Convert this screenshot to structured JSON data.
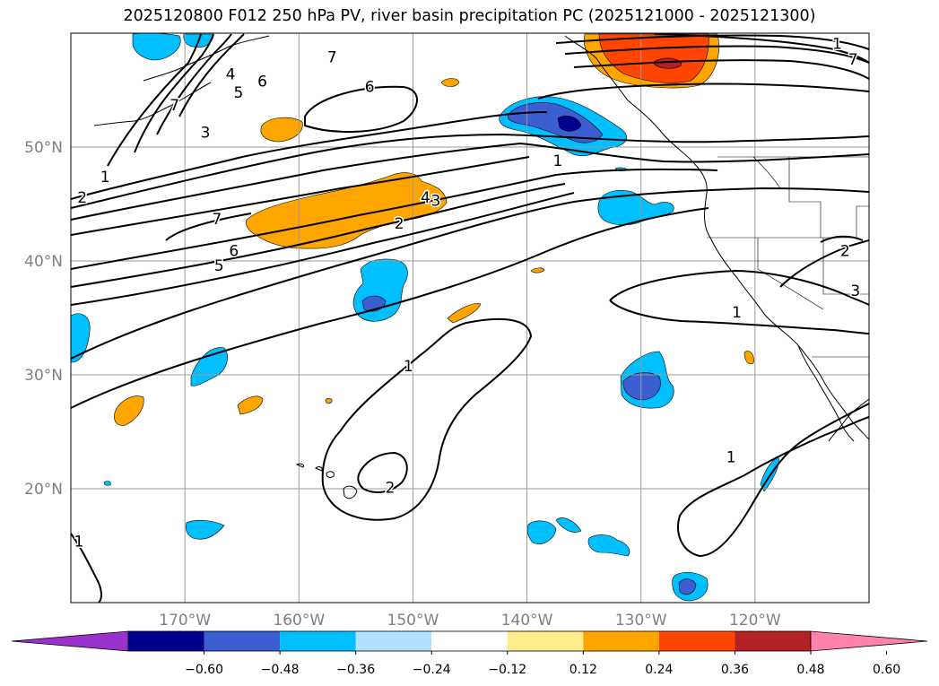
{
  "title": "2025120800 F012 250 hPa PV, river basin precipitation PC (2025121000 - 2025121300)",
  "map": {
    "lon_range": [
      -180,
      -110
    ],
    "lat_range": [
      10,
      60
    ],
    "lon_ticks": [
      {
        "lon": -170,
        "label": "170°W"
      },
      {
        "lon": -160,
        "label": "160°W"
      },
      {
        "lon": -150,
        "label": "150°W"
      },
      {
        "lon": -140,
        "label": "140°W"
      },
      {
        "lon": -130,
        "label": "130°W"
      },
      {
        "lon": -120,
        "label": "120°W"
      }
    ],
    "lat_ticks": [
      {
        "lat": 20,
        "label": "20°N"
      },
      {
        "lat": 30,
        "label": "30°N"
      },
      {
        "lat": 40,
        "label": "40°N"
      },
      {
        "lat": 50,
        "label": "50°N"
      }
    ],
    "contour_labels": [
      {
        "text": "1",
        "lon": -177,
        "lat": 47.4
      },
      {
        "text": "2",
        "lon": -179,
        "lat": 45.6
      },
      {
        "text": "3",
        "lon": -168.2,
        "lat": 51.3
      },
      {
        "text": "4",
        "lon": -166,
        "lat": 56.4
      },
      {
        "text": "5",
        "lon": -165.3,
        "lat": 54.8
      },
      {
        "text": "6",
        "lon": -163.2,
        "lat": 55.8
      },
      {
        "text": "6",
        "lon": -153.8,
        "lat": 55.3
      },
      {
        "text": "7",
        "lon": -157.1,
        "lat": 57.9
      },
      {
        "text": "7",
        "lon": -170.9,
        "lat": 53.7
      },
      {
        "text": "7",
        "lon": -167.2,
        "lat": 43.7
      },
      {
        "text": "6",
        "lon": -165.7,
        "lat": 40.9
      },
      {
        "text": "5",
        "lon": -167.0,
        "lat": 39.6
      },
      {
        "text": "4",
        "lon": -148.9,
        "lat": 45.6
      },
      {
        "text": "3",
        "lon": -148.0,
        "lat": 45.3
      },
      {
        "text": "2",
        "lon": -151.2,
        "lat": 43.3
      },
      {
        "text": "1",
        "lon": -137.3,
        "lat": 48.8
      },
      {
        "text": "1",
        "lon": -150.4,
        "lat": 30.8
      },
      {
        "text": "2",
        "lon": -152.0,
        "lat": 20.1
      },
      {
        "text": "1",
        "lon": -179.3,
        "lat": 15.4
      },
      {
        "text": "1",
        "lon": -112.8,
        "lat": 59.1
      },
      {
        "text": "7",
        "lon": -111.4,
        "lat": 57.7
      },
      {
        "text": "2",
        "lon": -112.1,
        "lat": 40.9
      },
      {
        "text": "3",
        "lon": -111.2,
        "lat": 37.4
      },
      {
        "text": "1",
        "lon": -121.6,
        "lat": 35.5
      },
      {
        "text": "1",
        "lon": -122.1,
        "lat": 22.8
      }
    ],
    "precip_regions": [
      {
        "name": "bering-sea-blue",
        "pc": -0.3
      },
      {
        "name": "aleutian-orange",
        "pc": 0.3
      },
      {
        "name": "jet-band-orange",
        "pc": 0.3
      },
      {
        "name": "gulf-alaska-negative",
        "pc": -0.55
      },
      {
        "name": "alaska-panhandle-positive",
        "pc": 0.45
      },
      {
        "name": "central-pacific-blue",
        "pc": -0.36
      },
      {
        "name": "east-pacific-blue",
        "pc": -0.4
      },
      {
        "name": "subtropical-orange",
        "pc": 0.28
      },
      {
        "name": "southern-blue-cells",
        "pc": -0.3
      }
    ]
  },
  "colorbar": {
    "colors": [
      "#9932cc",
      "#00008b",
      "#3b5fd0",
      "#00bfff",
      "#b0e2ff",
      "#ffffff",
      "#ffec8b",
      "#ffa500",
      "#ff4500",
      "#b22222",
      "#ff82ab"
    ],
    "ticks": [
      "−0.60",
      "−0.48",
      "−0.36",
      "−0.24",
      "−0.12",
      "0.12",
      "0.24",
      "0.36",
      "0.48",
      "0.60"
    ]
  }
}
